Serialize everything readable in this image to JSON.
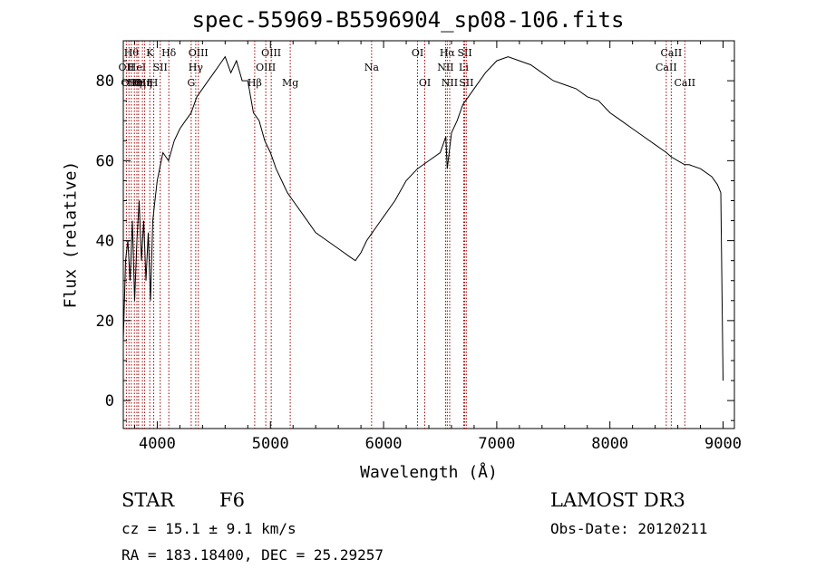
{
  "chart_data": {
    "type": "line",
    "title": "spec-55969-B5596904_sp08-106.fits",
    "xlabel": "Wavelength (Å)",
    "ylabel": "Flux (relative)",
    "xlim": [
      3700,
      9100
    ],
    "ylim": [
      -7,
      90
    ],
    "xticks": [
      4000,
      5000,
      6000,
      7000,
      8000,
      9000
    ],
    "yticks": [
      0,
      20,
      40,
      60,
      80
    ],
    "grid": false,
    "series": [
      {
        "name": "flux",
        "x": [
          3700,
          3720,
          3740,
          3760,
          3780,
          3800,
          3820,
          3840,
          3860,
          3880,
          3900,
          3920,
          3940,
          3960,
          3980,
          4000,
          4050,
          4100,
          4150,
          4200,
          4250,
          4300,
          4350,
          4400,
          4450,
          4500,
          4550,
          4600,
          4650,
          4700,
          4750,
          4800,
          4850,
          4900,
          4950,
          5000,
          5050,
          5100,
          5150,
          5200,
          5300,
          5400,
          5500,
          5600,
          5700,
          5750,
          5800,
          5850,
          5900,
          5950,
          6000,
          6100,
          6200,
          6300,
          6400,
          6500,
          6550,
          6563,
          6600,
          6650,
          6700,
          6800,
          6900,
          7000,
          7100,
          7200,
          7300,
          7400,
          7500,
          7600,
          7700,
          7800,
          7900,
          8000,
          8100,
          8200,
          8300,
          8400,
          8450,
          8500,
          8540,
          8600,
          8660,
          8700,
          8800,
          8900,
          8950,
          8980,
          9000
        ],
        "y": [
          15,
          35,
          40,
          30,
          45,
          25,
          40,
          50,
          35,
          45,
          30,
          42,
          25,
          45,
          50,
          55,
          62,
          60,
          65,
          68,
          70,
          72,
          76,
          78,
          80,
          82,
          84,
          86,
          82,
          85,
          80,
          80,
          72,
          70,
          65,
          62,
          58,
          55,
          52,
          50,
          46,
          42,
          40,
          38,
          36,
          35,
          37,
          40,
          42,
          44,
          46,
          50,
          55,
          58,
          60,
          62,
          66,
          58,
          67,
          70,
          74,
          78,
          82,
          85,
          86,
          85,
          84,
          82,
          80,
          79,
          78,
          76,
          75,
          72,
          70,
          68,
          66,
          64,
          63,
          62,
          61,
          60,
          59,
          59,
          58,
          56,
          54,
          52,
          5
        ]
      }
    ],
    "line_markers": [
      {
        "x": 3727,
        "label": "OII",
        "row": 2
      },
      {
        "x": 3750,
        "label": "OII",
        "row": 3
      },
      {
        "x": 3771,
        "label": "Hθ",
        "row": 1
      },
      {
        "x": 3798,
        "label": "Hη",
        "row": 3
      },
      {
        "x": 3820,
        "label": "HeI",
        "row": 2
      },
      {
        "x": 3835,
        "label": "Hη",
        "row": 3
      },
      {
        "x": 3869,
        "label": "OII",
        "row": 3
      },
      {
        "x": 3889,
        "label": "Hη",
        "row": 3
      },
      {
        "x": 3934,
        "label": "K",
        "row": 1
      },
      {
        "x": 3969,
        "label": "H",
        "row": 3
      },
      {
        "x": 4026,
        "label": "SII",
        "row": 2
      },
      {
        "x": 4102,
        "label": "Hδ",
        "row": 1
      },
      {
        "x": 4300,
        "label": "G",
        "row": 3
      },
      {
        "x": 4340,
        "label": "Hγ",
        "row": 2
      },
      {
        "x": 4363,
        "label": "OIII",
        "row": 1
      },
      {
        "x": 4861,
        "label": "Hβ",
        "row": 3
      },
      {
        "x": 4959,
        "label": "OIII",
        "row": 2
      },
      {
        "x": 5007,
        "label": "OIII",
        "row": 1
      },
      {
        "x": 5175,
        "label": "Mg",
        "row": 3
      },
      {
        "x": 5894,
        "label": "Na",
        "row": 2
      },
      {
        "x": 6300,
        "label": "OI",
        "row": 1
      },
      {
        "x": 6364,
        "label": "OI",
        "row": 3
      },
      {
        "x": 6548,
        "label": "NII",
        "row": 2
      },
      {
        "x": 6563,
        "label": "Hα",
        "row": 1
      },
      {
        "x": 6584,
        "label": "NII",
        "row": 3
      },
      {
        "x": 6708,
        "label": "Li",
        "row": 2
      },
      {
        "x": 6717,
        "label": "SII",
        "row": 1
      },
      {
        "x": 6731,
        "label": "SII",
        "row": 3
      },
      {
        "x": 8498,
        "label": "CaII",
        "row": 2
      },
      {
        "x": 8542,
        "label": "CaII",
        "row": 1
      },
      {
        "x": 8662,
        "label": "CaII",
        "row": 3
      }
    ]
  },
  "info": {
    "class": "STAR",
    "subclass": "F6",
    "cz": "cz = 15.1 ± 9.1 km/s",
    "radec": "RA = 183.18400, DEC =  25.29257",
    "survey": "LAMOST DR3",
    "obsdate": "Obs-Date: 20120211"
  }
}
